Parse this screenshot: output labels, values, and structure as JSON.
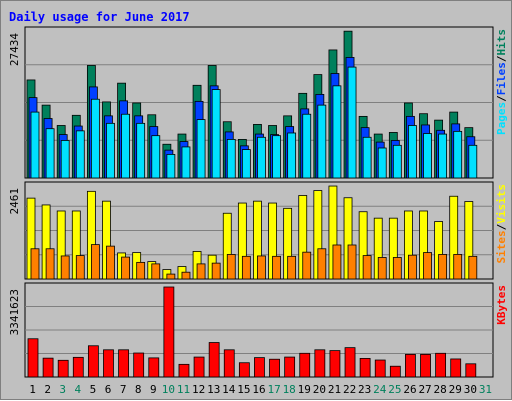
{
  "title": "Daily usage for June 2017",
  "colors": {
    "hits": "#00805c",
    "files": "#0040ff",
    "pages": "#00e0ff",
    "visits": "#ffff00",
    "sites": "#ff8000",
    "kbytes": "#ff0000",
    "title": "#0000ff",
    "weekend_day": "#00805c",
    "weekday": "#000000",
    "panel_bg": "#c0c0c0"
  },
  "chart_data": [
    {
      "type": "bar",
      "panel": "hits-files-pages",
      "ymax_label": "27434",
      "ylim": [
        0,
        27434
      ],
      "legend": [
        "Pages",
        "Files",
        "Hits"
      ],
      "categories": [
        "1",
        "2",
        "3",
        "4",
        "5",
        "6",
        "7",
        "8",
        "9",
        "10",
        "11",
        "12",
        "13",
        "14",
        "15",
        "16",
        "17",
        "18",
        "19",
        "20",
        "21",
        "22",
        "23",
        "24",
        "25",
        "26",
        "27",
        "28",
        "29",
        "30",
        "31"
      ],
      "series": [
        {
          "name": "Hits",
          "values": [
            18300,
            13600,
            9800,
            11700,
            21000,
            14200,
            17700,
            14000,
            11800,
            6300,
            8200,
            17300,
            21000,
            10500,
            7200,
            10000,
            9800,
            11600,
            15800,
            19300,
            23900,
            27400,
            11500,
            8200,
            8500,
            14000,
            12000,
            10800,
            12300,
            9400,
            null
          ]
        },
        {
          "name": "Files",
          "values": [
            15000,
            11100,
            8100,
            9700,
            17000,
            11600,
            14400,
            11600,
            9600,
            5200,
            6800,
            14300,
            17200,
            8600,
            6000,
            8200,
            8100,
            9600,
            12900,
            15600,
            19500,
            22500,
            9400,
            6700,
            7000,
            11500,
            9900,
            8900,
            10100,
            7700,
            null
          ]
        },
        {
          "name": "Pages",
          "values": [
            12300,
            9200,
            7000,
            8800,
            14700,
            10200,
            11900,
            10200,
            7900,
            4400,
            5800,
            10900,
            16500,
            7200,
            5300,
            7600,
            7900,
            8400,
            11900,
            13600,
            17200,
            20700,
            7600,
            5600,
            6100,
            9800,
            8300,
            8200,
            8700,
            6100,
            null
          ]
        }
      ]
    },
    {
      "type": "bar",
      "panel": "visits-sites",
      "ymax_label": "2461",
      "ylim": [
        0,
        2461
      ],
      "legend": [
        "Sites",
        "Visits"
      ],
      "categories": [
        "1",
        "2",
        "3",
        "4",
        "5",
        "6",
        "7",
        "8",
        "9",
        "10",
        "11",
        "12",
        "13",
        "14",
        "15",
        "16",
        "17",
        "18",
        "19",
        "20",
        "21",
        "22",
        "23",
        "24",
        "25",
        "26",
        "27",
        "28",
        "29",
        "30",
        "31"
      ],
      "series": [
        {
          "name": "Visits",
          "values": [
            2140,
            1960,
            1800,
            1800,
            2320,
            2060,
            690,
            700,
            460,
            250,
            330,
            730,
            630,
            1740,
            2010,
            2060,
            2010,
            1870,
            2210,
            2340,
            2460,
            2150,
            1780,
            1610,
            1610,
            1800,
            1800,
            1520,
            2190,
            2050,
            null
          ]
        },
        {
          "name": "Sites",
          "values": [
            800,
            800,
            610,
            620,
            910,
            870,
            580,
            440,
            400,
            130,
            180,
            400,
            420,
            650,
            600,
            610,
            600,
            600,
            710,
            800,
            900,
            900,
            620,
            570,
            570,
            630,
            700,
            650,
            650,
            600,
            null
          ]
        }
      ]
    },
    {
      "type": "bar",
      "panel": "kbytes",
      "ymax_label": "3341623",
      "ylim": [
        0,
        3341623
      ],
      "legend": [
        "KBytes"
      ],
      "categories": [
        "1",
        "2",
        "3",
        "4",
        "5",
        "6",
        "7",
        "8",
        "9",
        "10",
        "11",
        "12",
        "13",
        "14",
        "15",
        "16",
        "17",
        "18",
        "19",
        "20",
        "21",
        "22",
        "23",
        "24",
        "25",
        "26",
        "27",
        "28",
        "29",
        "30",
        "31"
      ],
      "series": [
        {
          "name": "KBytes",
          "values": [
            1420000,
            700000,
            620000,
            730000,
            1160000,
            1010000,
            1010000,
            890000,
            710000,
            3341623,
            470000,
            740000,
            1280000,
            1010000,
            530000,
            720000,
            660000,
            740000,
            880000,
            1010000,
            980000,
            1090000,
            690000,
            630000,
            400000,
            840000,
            840000,
            880000,
            670000,
            490000,
            null
          ]
        }
      ]
    }
  ],
  "weekend_days": [
    "3",
    "4",
    "10",
    "11",
    "17",
    "18",
    "24",
    "25",
    "31"
  ]
}
